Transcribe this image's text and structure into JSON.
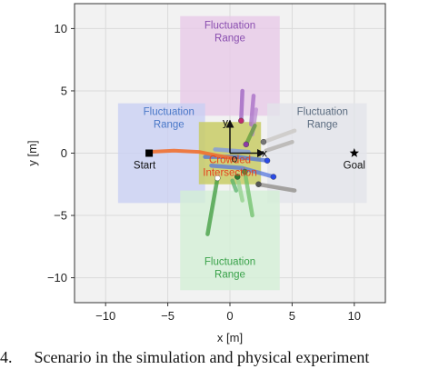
{
  "axes": {
    "xlabel": "x [m]",
    "ylabel": "y [m]",
    "xlim": [
      -12.5,
      12.5
    ],
    "ylim": [
      -12.0,
      12.0
    ],
    "xticks": [
      -10,
      -5,
      0,
      5,
      10
    ],
    "yticks": [
      10,
      5,
      0,
      -5,
      -10
    ],
    "grid": true
  },
  "regions": [
    {
      "id": "top",
      "label_line1": "Fluctuation",
      "label_line2": "Range",
      "x0": -4,
      "x1": 4,
      "y0": 3,
      "y1": 11,
      "fill": "#e7c9e7",
      "text_color": "#8a4fb0"
    },
    {
      "id": "left",
      "label_line1": "Fluctuation",
      "label_line2": "Range",
      "x0": -9,
      "x1": -2,
      "y0": -4,
      "y1": 4,
      "fill": "#c9d0f2",
      "text_color": "#4a78c8"
    },
    {
      "id": "right",
      "label_line1": "Fluctuation",
      "label_line2": "Range",
      "x0": 3,
      "x1": 11,
      "y0": -4,
      "y1": 4,
      "fill": "#e2e4ea",
      "text_color": "#5a6b7f"
    },
    {
      "id": "bottom",
      "label_line1": "Fluctuation",
      "label_line2": "Range",
      "x0": -4,
      "x1": 4,
      "y0": -11,
      "y1": -3,
      "fill": "#d3efd6",
      "text_color": "#3aa24a"
    }
  ],
  "intersection": {
    "label_line1": "Crowded",
    "label_line2": "Intersection",
    "x0": -2.5,
    "x1": 2.5,
    "y0": -2.5,
    "y1": 2.5,
    "fill": "#c9cc66",
    "text_color": "#e4421d"
  },
  "start": {
    "label": "Start",
    "x": -6.5,
    "y": 0
  },
  "goal": {
    "label": "Goal",
    "x": 10,
    "y": 0
  },
  "frame": {
    "origin_label": "o",
    "x_label": "x",
    "y_label": "y",
    "x": 0,
    "y": 0
  },
  "robot_path": {
    "color": "#f07030",
    "points": [
      [
        -6.5,
        0.1
      ],
      [
        -4.5,
        0.2
      ],
      [
        -2.5,
        0.1
      ],
      [
        -1.0,
        -0.2
      ],
      [
        0.2,
        -0.4
      ]
    ]
  },
  "agents": [
    {
      "color": "#9b5fc0",
      "path": [
        [
          1.0,
          5.0
        ],
        [
          0.9,
          2.6
        ]
      ],
      "marker": [
        0.9,
        2.6
      ],
      "marker_color": "#c02b6e"
    },
    {
      "color": "#a46ac4",
      "path": [
        [
          1.9,
          4.6
        ],
        [
          1.7,
          2.3
        ]
      ]
    },
    {
      "color": "#b98bd1",
      "path": [
        [
          2.1,
          3.5
        ],
        [
          1.8,
          1.5
        ]
      ]
    },
    {
      "color": "#5d9a3a",
      "path": [
        [
          2.0,
          2.2
        ],
        [
          1.3,
          0.7
        ]
      ],
      "marker": [
        1.3,
        0.7
      ],
      "marker_color": "#8e3aa6"
    },
    {
      "color": "#c8c6c1",
      "path": [
        [
          5.2,
          1.8
        ],
        [
          2.7,
          0.9
        ]
      ],
      "marker": [
        2.7,
        0.9
      ],
      "marker_color": "#777777"
    },
    {
      "color": "#b0aeaa",
      "path": [
        [
          5.0,
          0.9
        ],
        [
          2.9,
          0.2
        ]
      ]
    },
    {
      "color": "#8c8a86",
      "path": [
        [
          5.2,
          -3.0
        ],
        [
          2.3,
          -2.5
        ]
      ],
      "marker": [
        2.3,
        -2.5
      ],
      "marker_color": "#555555"
    },
    {
      "color": "#4a6fd9",
      "path": [
        [
          -2.0,
          -0.3
        ],
        [
          0.6,
          -0.3
        ],
        [
          3.0,
          -0.6
        ]
      ],
      "marker": [
        3.0,
        -0.6
      ],
      "marker_color": "#2b4be6"
    },
    {
      "color": "#5577dd",
      "path": [
        [
          -1.5,
          -1.0
        ],
        [
          1.0,
          -1.2
        ],
        [
          3.5,
          -1.9
        ]
      ],
      "marker": [
        3.5,
        -1.9
      ],
      "marker_color": "#2b4be6"
    },
    {
      "color": "#7b96e6",
      "path": [
        [
          -1.2,
          0.3
        ],
        [
          1.5,
          0.1
        ]
      ]
    },
    {
      "color": "#3c9b3c",
      "path": [
        [
          -1.8,
          -6.5
        ],
        [
          -1.0,
          -2.0
        ]
      ],
      "marker": [
        -1.0,
        -2.0
      ],
      "marker_color": "#ffffff"
    },
    {
      "color": "#6ec06a",
      "path": [
        [
          1.8,
          -5.0
        ],
        [
          1.2,
          -1.5
        ]
      ],
      "marker": [
        1.2,
        -1.5
      ],
      "marker_color": "#3e8f3a"
    },
    {
      "color": "#8fd08a",
      "path": [
        [
          1.0,
          -3.8
        ],
        [
          0.6,
          -1.9
        ]
      ],
      "marker": [
        0.6,
        -1.9
      ],
      "marker_color": "#2e7d32"
    },
    {
      "color": "#57b36a",
      "path": [
        [
          0.5,
          -3.0
        ],
        [
          0.2,
          -2.2
        ]
      ]
    }
  ],
  "caption": {
    "number": "4.",
    "text": "Scenario in the simulation and physical experiment"
  }
}
